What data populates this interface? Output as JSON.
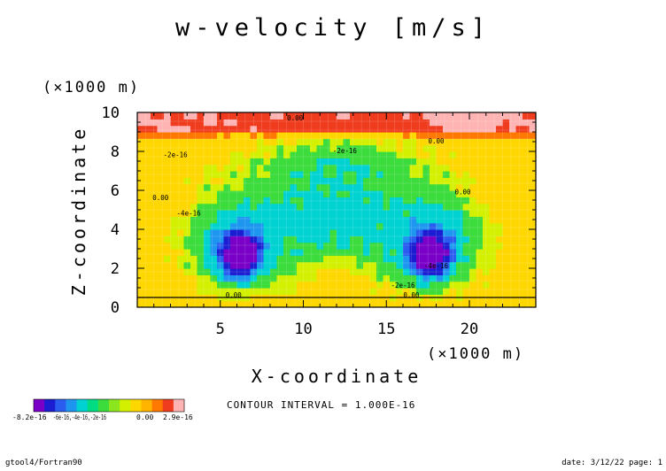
{
  "chart_data": {
    "type": "heatmap",
    "title": "w-velocity [m/s]",
    "xlabel": "X-coordinate",
    "ylabel": "Z-coordinate",
    "x_unit": "(×1000 m)",
    "y_unit": "(×1000 m)",
    "xlim": [
      0,
      24
    ],
    "ylim": [
      0,
      10
    ],
    "x_ticks": [
      5,
      10,
      15,
      20
    ],
    "y_ticks": [
      0,
      2,
      4,
      6,
      8,
      10
    ],
    "contour_interval_text": "CONTOUR INTERVAL = 1.000E-16",
    "contour_labels": [
      {
        "text": "0.00",
        "x": 9.5,
        "y": 9.6
      },
      {
        "text": "-2e-16",
        "x": 2.3,
        "y": 7.7
      },
      {
        "text": "-2e-16",
        "x": 12.5,
        "y": 7.9
      },
      {
        "text": "0.00",
        "x": 1.4,
        "y": 5.5
      },
      {
        "text": "0.00",
        "x": 19.6,
        "y": 5.8
      },
      {
        "text": "-4e-16",
        "x": 3.1,
        "y": 4.7
      },
      {
        "text": "-4e-16",
        "x": 18.0,
        "y": 2.0
      },
      {
        "text": "-2e-16",
        "x": 16.0,
        "y": 1.0
      },
      {
        "text": "0.00",
        "x": 5.8,
        "y": 0.5
      },
      {
        "text": "0.00",
        "x": 16.5,
        "y": 0.5
      },
      {
        "text": "0.00",
        "x": 18.0,
        "y": 8.4
      }
    ],
    "colorbar": {
      "label_min": "-8.2e-16",
      "label_mid": "-6e-16,-4e-16,-2e-16",
      "label_zero": "0.00",
      "label_max": "2.9e-16",
      "colors": [
        "#7a00c8",
        "#1c1cd2",
        "#2a5cf0",
        "#1e96f0",
        "#00d2d2",
        "#00dc82",
        "#3cdc3c",
        "#8ce61e",
        "#d2f000",
        "#ffd700",
        "#ffb400",
        "#ff7800",
        "#f03c1e",
        "#ffb4b4"
      ]
    },
    "field_colors": {
      "max": "#ffb4b4",
      "pos_high": "#f03c1e",
      "pos_mid": "#ff7800",
      "zero": "#ffd700",
      "neg_1": "#d2f000",
      "neg_2": "#3cdc3c",
      "neg_3": "#00d2d2",
      "neg_4": "#1e96f0",
      "neg_5": "#2a5cf0",
      "neg_6": "#1c1cd2",
      "min": "#7a00c8"
    }
  },
  "footer": {
    "left": "gtool4/Fortran90",
    "right": "date: 3/12/22 page: 1"
  }
}
